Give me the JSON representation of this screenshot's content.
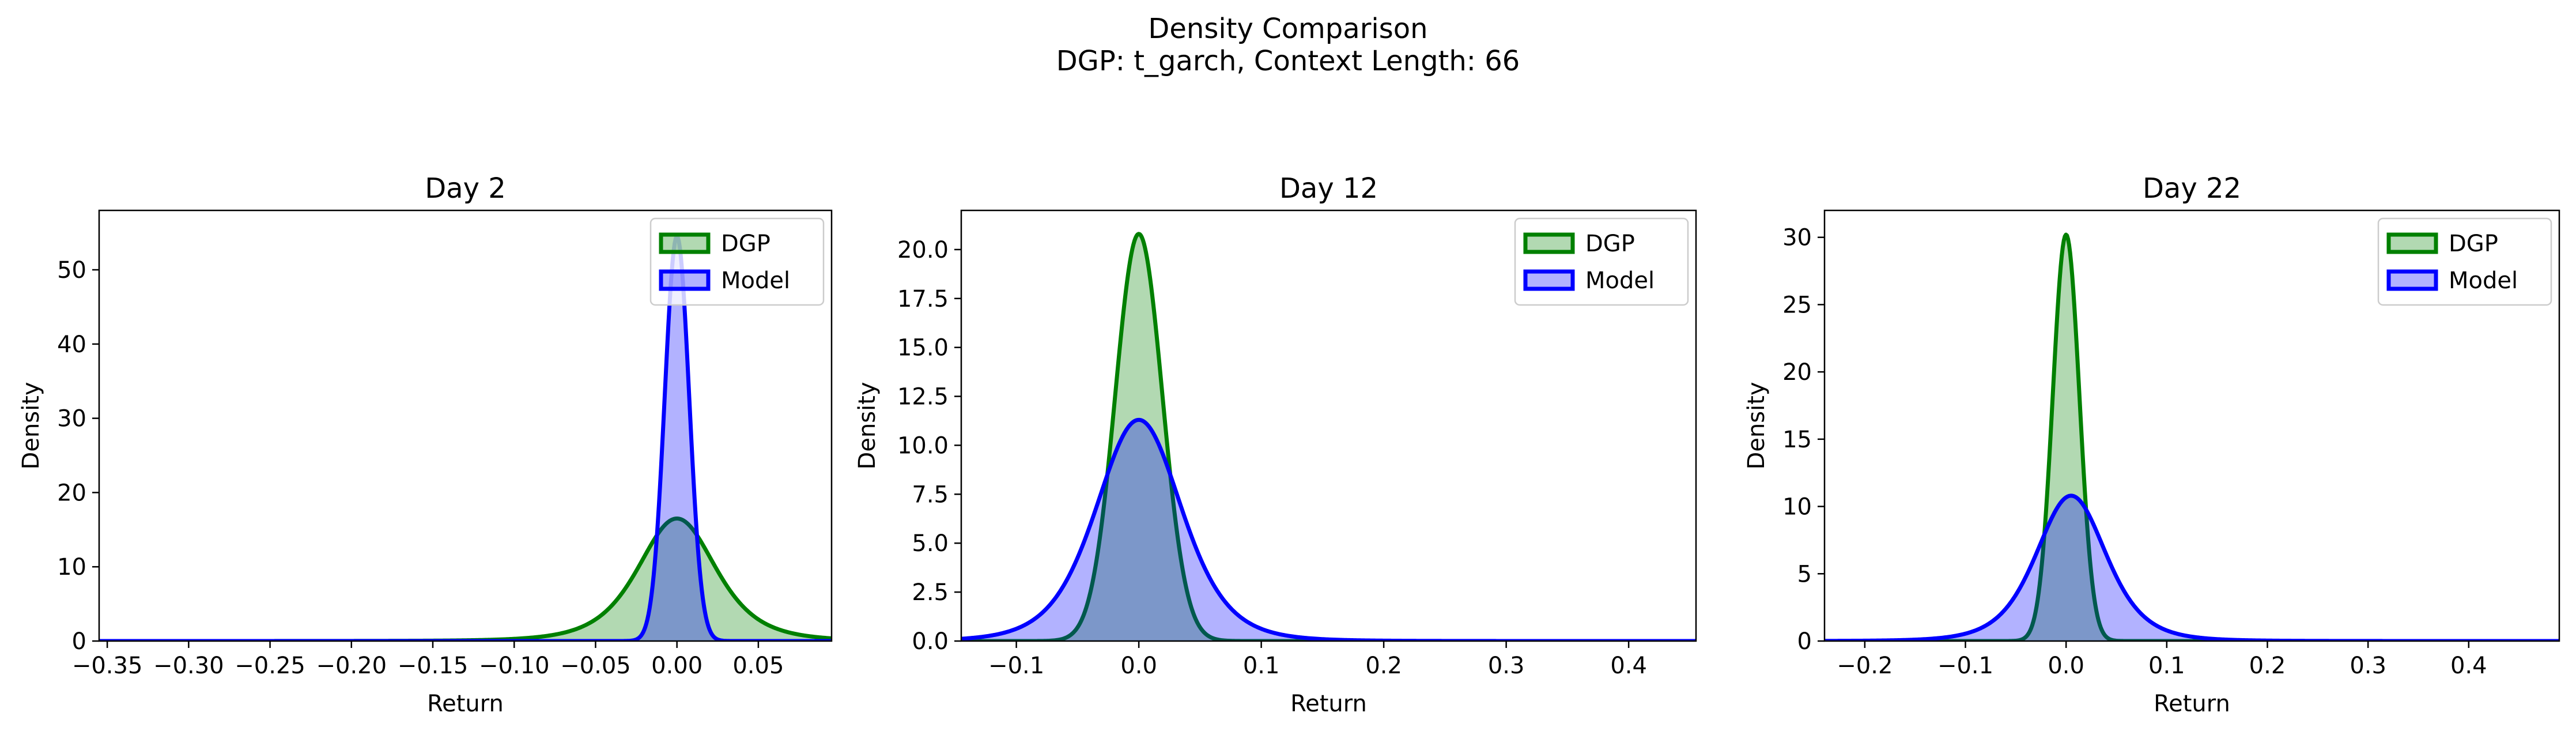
{
  "suptitle": "Density Comparison",
  "subtitle": "DGP: t_garch, Context Length: 66",
  "colors": {
    "dgp_line": "#008000",
    "dgp_fill": "#008000",
    "model_line": "#0000ff",
    "model_fill": "#0000ff"
  },
  "chart_data": [
    {
      "type": "area",
      "title": "Day 2",
      "xlabel": "Return",
      "ylabel": "Density",
      "xlim": [
        -0.355,
        0.095
      ],
      "ylim": [
        0,
        58
      ],
      "xticks": [
        -0.35,
        -0.3,
        -0.25,
        -0.2,
        -0.15,
        -0.1,
        -0.05,
        0.0,
        0.05
      ],
      "xtick_labels": [
        "−0.35",
        "−0.30",
        "−0.25",
        "−0.20",
        "−0.15",
        "−0.10",
        "−0.05",
        "0.00",
        "0.05"
      ],
      "yticks": [
        0,
        10,
        20,
        30,
        40,
        50
      ],
      "ytick_labels": [
        "0",
        "10",
        "20",
        "30",
        "40",
        "50"
      ],
      "legend": {
        "position": "upper right",
        "entries": [
          "DGP",
          "Model"
        ]
      },
      "series": [
        {
          "name": "DGP",
          "shape": "student_t",
          "mode": 0.0,
          "peak": 16.5,
          "scale": 0.025,
          "df": 4
        },
        {
          "name": "Model",
          "shape": "normal",
          "mode": 0.0,
          "peak": 54.5,
          "scale": 0.0075
        }
      ]
    },
    {
      "type": "area",
      "title": "Day 12",
      "xlabel": "Return",
      "ylabel": "Density",
      "xlim": [
        -0.145,
        0.455
      ],
      "ylim": [
        0,
        22
      ],
      "xticks": [
        -0.1,
        0.0,
        0.1,
        0.2,
        0.3,
        0.4
      ],
      "xtick_labels": [
        "−0.1",
        "0.0",
        "0.1",
        "0.2",
        "0.3",
        "0.4"
      ],
      "yticks": [
        0,
        2.5,
        5,
        7.5,
        10,
        12.5,
        15,
        17.5,
        20
      ],
      "ytick_labels": [
        "0.0",
        "2.5",
        "5.0",
        "7.5",
        "10.0",
        "12.5",
        "15.0",
        "17.5",
        "20.0"
      ],
      "legend": {
        "position": "upper right",
        "entries": [
          "DGP",
          "Model"
        ]
      },
      "series": [
        {
          "name": "DGP",
          "shape": "normal",
          "mode": 0.0,
          "peak": 20.8,
          "scale": 0.0192
        },
        {
          "name": "Model",
          "shape": "student_t",
          "mode": 0.0,
          "peak": 11.3,
          "scale": 0.036,
          "df": 6
        }
      ]
    },
    {
      "type": "area",
      "title": "Day 22",
      "xlabel": "Return",
      "ylabel": "Density",
      "xlim": [
        -0.24,
        0.49
      ],
      "ylim": [
        0,
        32
      ],
      "xticks": [
        -0.2,
        -0.1,
        0.0,
        0.1,
        0.2,
        0.3,
        0.4
      ],
      "xtick_labels": [
        "−0.2",
        "−0.1",
        "0.0",
        "0.1",
        "0.2",
        "0.3",
        "0.4"
      ],
      "yticks": [
        0,
        5,
        10,
        15,
        20,
        25,
        30
      ],
      "ytick_labels": [
        "0",
        "5",
        "10",
        "15",
        "20",
        "25",
        "30"
      ],
      "legend": {
        "position": "upper right",
        "entries": [
          "DGP",
          "Model"
        ]
      },
      "series": [
        {
          "name": "DGP",
          "shape": "normal",
          "mode": 0.0,
          "peak": 30.2,
          "scale": 0.0132
        },
        {
          "name": "Model",
          "shape": "student_t",
          "mode": 0.005,
          "peak": 10.8,
          "scale": 0.036,
          "df": 5
        }
      ]
    }
  ]
}
